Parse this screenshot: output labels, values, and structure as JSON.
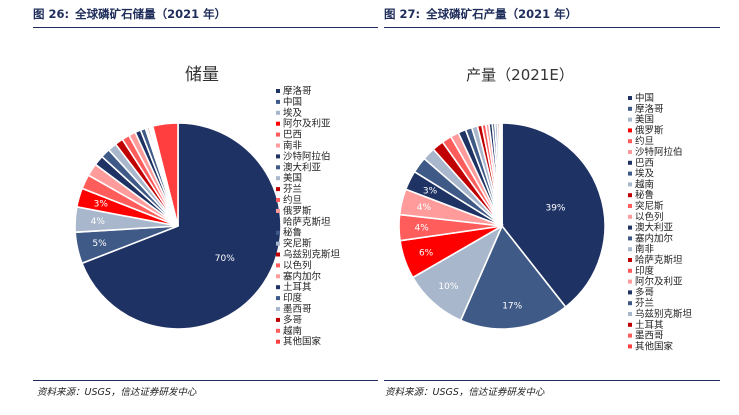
{
  "figures": [
    {
      "number": "图 26:",
      "title": "全球磷矿石储量（2021 年）",
      "source": "资料来源：USGS，信达证券研发中心"
    },
    {
      "number": "图 27:",
      "title": "全球磷矿石产量（2021 年）",
      "source": "资料来源：USGS，信达证券研发中心"
    }
  ],
  "chart_data": [
    {
      "type": "pie",
      "title": "储量",
      "legend_position": "right",
      "labels": [
        "摩洛哥",
        "中国",
        "埃及",
        "阿尔及利亚",
        "巴西",
        "南非",
        "沙特阿拉伯",
        "澳大利亚",
        "美国",
        "芬兰",
        "约旦",
        "俄罗斯",
        "哈萨克斯坦",
        "秘鲁",
        "突尼斯",
        "乌兹别克斯坦",
        "以色列",
        "塞内加尔",
        "土耳其",
        "印度",
        "墨西哥",
        "多哥",
        "越南",
        "其他国家"
      ],
      "values": [
        70,
        5,
        4,
        3,
        2.3,
        2,
        1.6,
        1.5,
        1.4,
        1.3,
        1.2,
        1.1,
        0.9,
        0.8,
        0.3,
        0.3,
        0.2,
        0.1,
        0.1,
        0.05,
        0.05,
        0.05,
        0.05,
        4.0
      ],
      "data_labels": {
        "0": "70%",
        "1": "5%",
        "2": "4%",
        "3": "3%"
      },
      "colors": [
        "#1f3264",
        "#3f5a87",
        "#a9b7cc",
        "#ff0000",
        "#ff5c5c",
        "#ff9b9b",
        "#1f3264",
        "#3f5a87",
        "#a9b7cc",
        "#c00000",
        "#ff5c5c",
        "#ff9b9b",
        "#1f3264",
        "#3f5a87",
        "#a9b7cc",
        "#c00000",
        "#ff5c5c",
        "#ff9b9b",
        "#1f3264",
        "#3f5a87",
        "#a9b7cc",
        "#c00000",
        "#ff5c5c",
        "#ff3f3f"
      ]
    },
    {
      "type": "pie",
      "title": "产量（2021E）",
      "legend_position": "right",
      "labels": [
        "中国",
        "摩洛哥",
        "美国",
        "俄罗斯",
        "约旦",
        "沙特阿拉伯",
        "巴西",
        "埃及",
        "越南",
        "秘鲁",
        "突尼斯",
        "以色列",
        "澳大利亚",
        "塞内加尔",
        "南非",
        "哈萨克斯坦",
        "印度",
        "阿尔及利亚",
        "多哥",
        "芬兰",
        "乌兹别克斯坦",
        "土耳其",
        "墨西哥",
        "其他国家"
      ],
      "values": [
        39,
        17,
        10,
        6,
        4,
        4,
        3,
        2.5,
        2,
        1.8,
        1.5,
        1.3,
        1.2,
        1.0,
        0.9,
        0.7,
        0.6,
        0.5,
        0.5,
        0.4,
        0.4,
        0.3,
        0.2,
        0.2
      ],
      "data_labels": {
        "0": "39%",
        "1": "17%",
        "2": "10%",
        "3": "6%",
        "4": "4%",
        "5": "4%",
        "6": "3%"
      },
      "colors": [
        "#1f3264",
        "#3f5a87",
        "#a9b7cc",
        "#ff0000",
        "#ff5c5c",
        "#ff9b9b",
        "#1f3264",
        "#3f5a87",
        "#a9b7cc",
        "#c00000",
        "#ff5c5c",
        "#ff9b9b",
        "#1f3264",
        "#3f5a87",
        "#a9b7cc",
        "#c00000",
        "#ff5c5c",
        "#ff9b9b",
        "#1f3264",
        "#3f5a87",
        "#a9b7cc",
        "#c00000",
        "#ff5c5c",
        "#ff3f3f"
      ]
    }
  ]
}
